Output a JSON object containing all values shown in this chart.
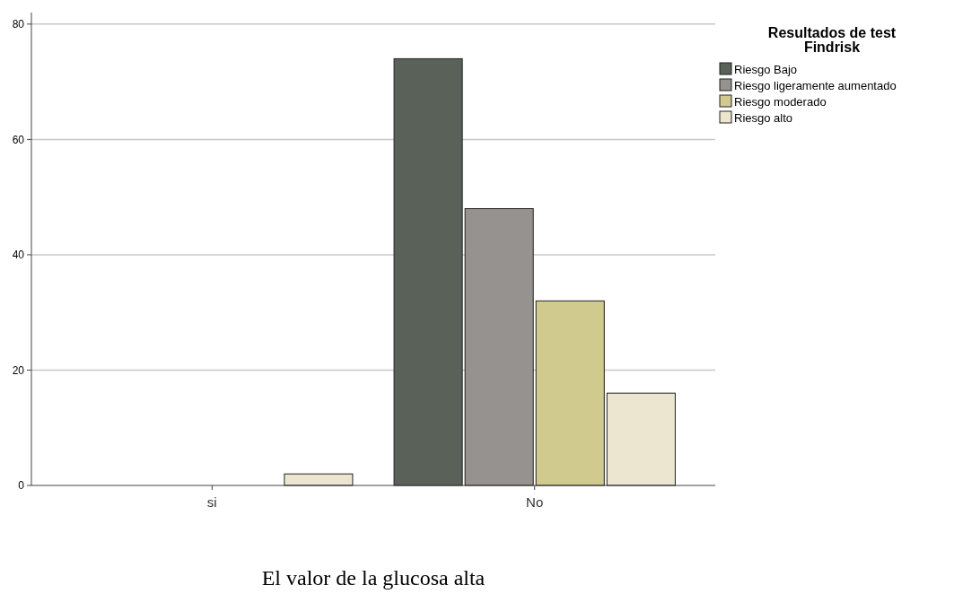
{
  "chart_data": {
    "type": "bar",
    "xlabel": "El valor de la glucosa alta",
    "legend_title": "Resultados de test Findrisk",
    "categories": [
      "si",
      "No"
    ],
    "series": [
      {
        "name": "Riesgo Bajo",
        "color": "#596159",
        "values": [
          null,
          74
        ]
      },
      {
        "name": "Riesgo ligeramente aumentado",
        "color": "#959290",
        "values": [
          null,
          48
        ]
      },
      {
        "name": "Riesgo moderado",
        "color": "#d0ca8f",
        "values": [
          null,
          32
        ]
      },
      {
        "name": "Riesgo alto",
        "color": "#ece6d0",
        "values": [
          2,
          16
        ]
      }
    ],
    "ylim": [
      0,
      82
    ],
    "yticks": [
      0,
      20,
      40,
      60,
      80
    ],
    "grid": "y",
    "legend": "top right"
  }
}
